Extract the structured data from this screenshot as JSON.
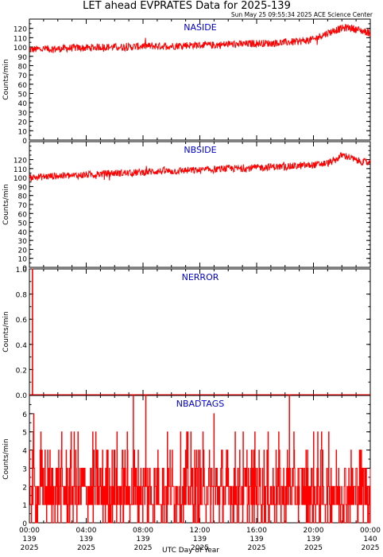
{
  "title": "LET ahead EVPRATES Data for 2025-139",
  "timestamp": "Sun May 25 09:55:34 2025 ACE Science Center",
  "xlabel": "UTC Day of Year",
  "ylabel": "Counts/min",
  "colors": {
    "series": "#ff0000",
    "panel_label": "#0000cc",
    "axes": "#000000"
  },
  "chart_data": [
    {
      "type": "line",
      "name": "NASIDE",
      "ylabel": "Counts/min",
      "ylim": [
        0,
        130
      ],
      "yticks": [
        0,
        10,
        20,
        30,
        40,
        50,
        60,
        70,
        80,
        90,
        100,
        110,
        120
      ],
      "xlim": [
        0,
        24
      ],
      "x": [
        0,
        1,
        2,
        3,
        4,
        5,
        6,
        7,
        8,
        9,
        10,
        11,
        12,
        13,
        14,
        15,
        16,
        17,
        18,
        19,
        20,
        20.5,
        21,
        21.5,
        22,
        22.5,
        23,
        23.5,
        24
      ],
      "y": [
        97,
        98,
        98,
        99,
        99,
        100,
        100,
        100,
        101,
        101,
        101,
        102,
        102,
        102,
        103,
        103,
        104,
        104,
        105,
        106,
        108,
        112,
        115,
        118,
        120,
        121,
        119,
        117,
        115
      ],
      "noise": 4
    },
    {
      "type": "line",
      "name": "NBSIDE",
      "ylabel": "Counts/min",
      "ylim": [
        0,
        140
      ],
      "yticks": [
        0,
        10,
        20,
        30,
        40,
        50,
        60,
        70,
        80,
        90,
        100,
        110,
        120
      ],
      "xlim": [
        0,
        24
      ],
      "x": [
        0,
        1,
        2,
        3,
        4,
        5,
        6,
        7,
        8,
        9,
        10,
        11,
        12,
        13,
        14,
        15,
        16,
        17,
        18,
        19,
        20,
        21,
        21.5,
        22,
        22.5,
        23,
        24
      ],
      "y": [
        100,
        101,
        102,
        102,
        103,
        104,
        105,
        105,
        106,
        107,
        107,
        108,
        108,
        109,
        110,
        110,
        111,
        112,
        112,
        113,
        114,
        116,
        119,
        125,
        123,
        119,
        116
      ],
      "noise": 4
    },
    {
      "type": "line",
      "name": "NERROR",
      "ylabel": "Counts/min",
      "ylim": [
        0,
        1
      ],
      "yticks": [
        0.0,
        0.2,
        0.4,
        0.6,
        0.8,
        1.0
      ],
      "xlim": [
        0,
        24
      ],
      "spikes": [
        {
          "x": 0.2,
          "y": 1
        }
      ],
      "baseline": 0
    },
    {
      "type": "line",
      "name": "NBADTAGS",
      "ylabel": "Counts/min",
      "ylim": [
        0,
        7
      ],
      "yticks": [
        0,
        1,
        2,
        3,
        4,
        5,
        6
      ],
      "xlim": [
        0,
        24
      ],
      "typical_range": [
        0,
        4
      ],
      "spikes": [
        {
          "x": 0.3,
          "y": 6
        },
        {
          "x": 7.3,
          "y": 7
        },
        {
          "x": 8.2,
          "y": 7
        },
        {
          "x": 18.3,
          "y": 7
        },
        {
          "x": 13.0,
          "y": 6
        }
      ]
    }
  ],
  "xticks": [
    {
      "time": "00:00",
      "doy": "139",
      "year": "2025"
    },
    {
      "time": "04:00",
      "doy": "139",
      "year": "2025"
    },
    {
      "time": "08:00",
      "doy": "139",
      "year": "2025"
    },
    {
      "time": "12:00",
      "doy": "139",
      "year": "2025"
    },
    {
      "time": "16:00",
      "doy": "139",
      "year": "2025"
    },
    {
      "time": "20:00",
      "doy": "139",
      "year": "2025"
    },
    {
      "time": "00:00",
      "doy": "140",
      "year": "2025"
    }
  ]
}
